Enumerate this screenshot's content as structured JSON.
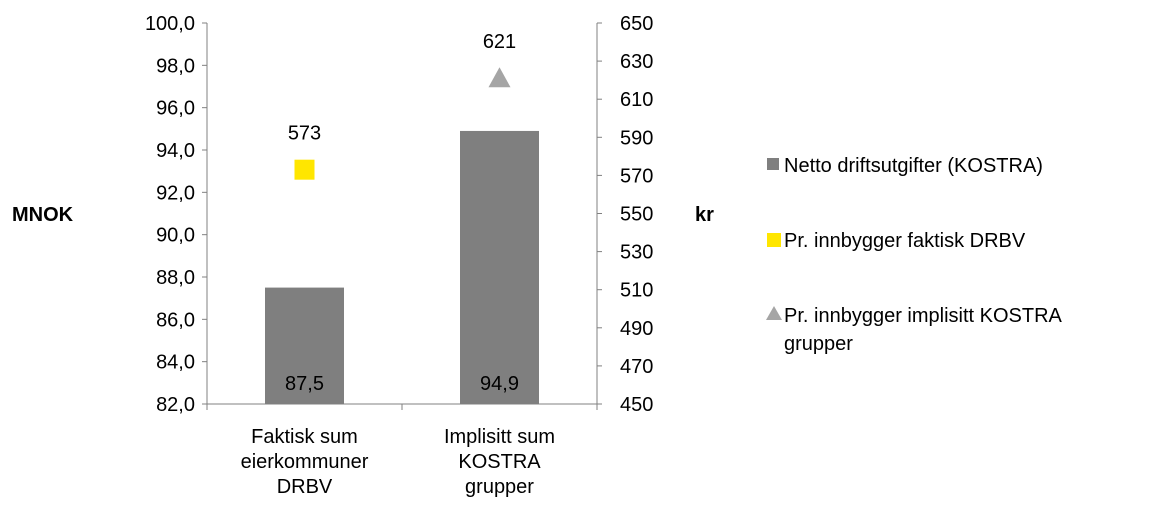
{
  "chart_data": {
    "type": "bar",
    "categories": [
      [
        "Faktisk sum",
        "eierkommuner",
        "DRBV"
      ],
      [
        "Implisitt sum",
        "KOSTRA",
        "grupper"
      ]
    ],
    "y_left": {
      "label": "MNOK",
      "ylim": [
        82,
        100
      ],
      "ticks": [
        "82,0",
        "84,0",
        "86,0",
        "88,0",
        "90,0",
        "92,0",
        "94,0",
        "96,0",
        "98,0",
        "100,0"
      ]
    },
    "y_right": {
      "label": "kr",
      "ylim": [
        450,
        650
      ],
      "ticks": [
        "450",
        "470",
        "490",
        "510",
        "530",
        "550",
        "570",
        "590",
        "610",
        "630",
        "650"
      ]
    },
    "series": [
      {
        "name": "Netto driftsutgifter (KOSTRA)",
        "kind": "bar",
        "axis": "left",
        "color": "#7f7f7f",
        "values": [
          87.5,
          94.9
        ],
        "labels": [
          "87,5",
          "94,9"
        ]
      },
      {
        "name": "Pr. innbygger faktisk DRBV",
        "kind": "marker",
        "marker": "square",
        "axis": "right",
        "color": "#ffe600",
        "values": [
          573,
          null
        ],
        "labels": [
          "573",
          ""
        ]
      },
      {
        "name": "Pr. innbygger implisitt KOSTRA grupper",
        "kind": "marker",
        "marker": "triangle",
        "axis": "right",
        "color": "#a5a5a5",
        "values": [
          null,
          621
        ],
        "labels": [
          "",
          "621"
        ]
      }
    ],
    "legend": {
      "position": "right",
      "items": [
        [
          "Netto driftsutgifter (KOSTRA)"
        ],
        [
          "Pr. innbygger faktisk DRBV"
        ],
        [
          "Pr. innbygger implisitt KOSTRA",
          "grupper"
        ]
      ]
    },
    "grid": false
  }
}
